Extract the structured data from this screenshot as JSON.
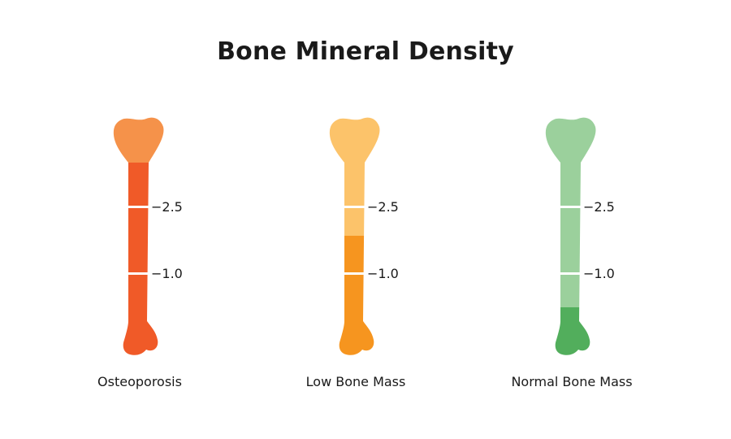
{
  "title": "Bone Mineral Density",
  "bones": [
    {
      "label": "Osteoporosis",
      "light_color": "#F5924A",
      "dark_color": "#F05A28",
      "ticks": [
        "−2.5",
        "−1.0"
      ]
    },
    {
      "label": "Low Bone Mass",
      "light_color": "#FCC36A",
      "dark_color": "#F6951F",
      "ticks": [
        "−2.5",
        "−1.0"
      ]
    },
    {
      "label": "Normal Bone Mass",
      "light_color": "#9BD09C",
      "dark_color": "#52AE5C",
      "ticks": [
        "−2.5",
        "−1.0"
      ]
    }
  ]
}
